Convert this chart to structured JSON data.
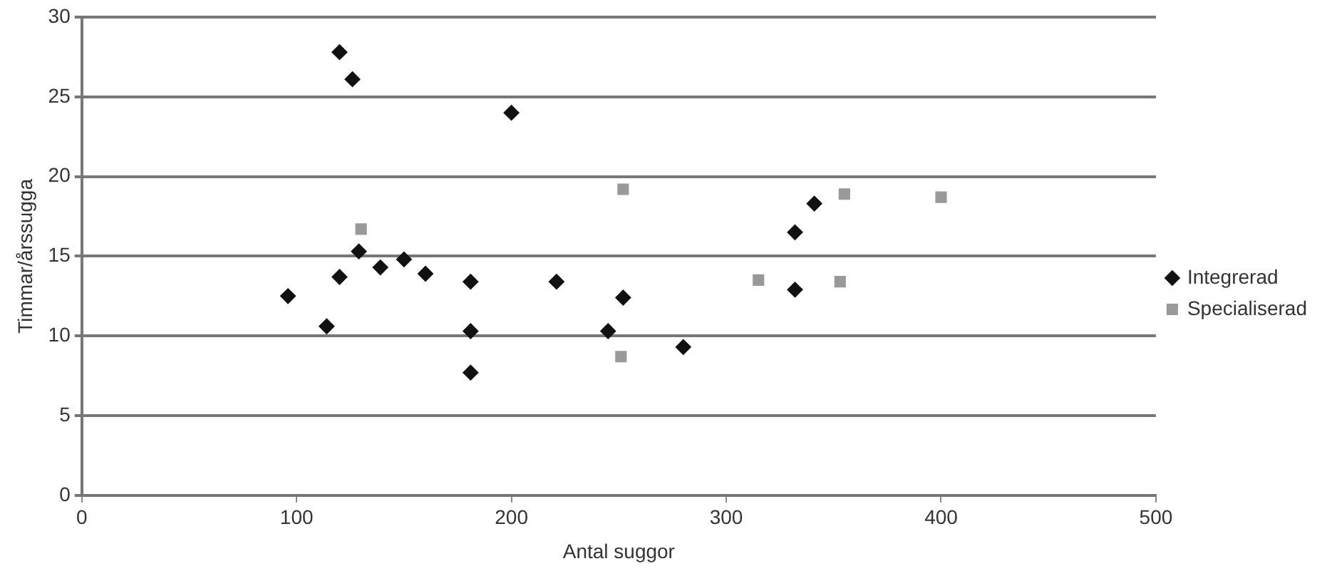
{
  "chart_data": {
    "type": "scatter",
    "xlabel": "Antal suggor",
    "ylabel": "Timmar/årssugga",
    "series": [
      {
        "name": "Integrerad",
        "color": "#111111",
        "marker": "diamond",
        "x": [
          120,
          126,
          200,
          96,
          114,
          120,
          129,
          139,
          150,
          160,
          181,
          181,
          181,
          221,
          252,
          245,
          280,
          332,
          341,
          332
        ],
        "values": [
          27.8,
          26.1,
          24.0,
          12.5,
          10.6,
          13.7,
          15.3,
          14.3,
          14.8,
          13.9,
          13.4,
          10.3,
          7.7,
          13.4,
          12.4,
          10.3,
          9.3,
          16.5,
          18.3,
          12.9
        ]
      },
      {
        "name": "Specialiserad",
        "color": "#999999",
        "marker": "square",
        "x": [
          130,
          252,
          251,
          315,
          355,
          353,
          400
        ],
        "values": [
          16.7,
          19.2,
          8.7,
          13.5,
          18.9,
          13.4,
          18.7
        ]
      }
    ],
    "xlim": [
      0,
      500
    ],
    "xticks": [
      0,
      100,
      200,
      300,
      400,
      500
    ],
    "ylim": [
      0,
      30
    ],
    "yticks": [
      0,
      5,
      10,
      15,
      20,
      25,
      30
    ],
    "grid": "y",
    "legend": "right"
  }
}
